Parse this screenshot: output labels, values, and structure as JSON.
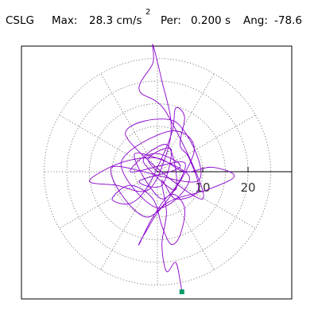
{
  "header": {
    "station": "CSLG",
    "max_label": "Max:",
    "max_value": "28.3 cm/s",
    "max_exponent": "2",
    "period_label": "Per:",
    "period_value": "0.200 s",
    "angle_label": "Ang:",
    "angle_value": "-78.6"
  },
  "colors": {
    "trace": "#8800cc",
    "end_marker": "#009966",
    "grid": "#666666",
    "axis": "#000000",
    "frame": "#000000"
  },
  "chart_data": {
    "type": "polar-orbit",
    "units": "cm/s2",
    "radial_rings": [
      5,
      10,
      15,
      20,
      25
    ],
    "tick_labels": [
      "10",
      "20"
    ],
    "spoke_step_deg": 30,
    "xlim": [
      -20,
      30
    ],
    "ylim": [
      -27,
      27
    ],
    "grid": true,
    "trace": {
      "name": "",
      "points": [
        [
          0,
          0
        ],
        [
          -2,
          3
        ],
        [
          3,
          5
        ],
        [
          1,
          -3
        ],
        [
          -4,
          -2
        ],
        [
          5,
          1
        ],
        [
          0,
          4
        ],
        [
          -3,
          2
        ],
        [
          4,
          -4
        ],
        [
          2,
          6
        ],
        [
          -6,
          0
        ],
        [
          6,
          2
        ],
        [
          1,
          -6
        ],
        [
          -5,
          4
        ],
        [
          7,
          -1
        ],
        [
          0,
          -8
        ],
        [
          -8,
          2
        ],
        [
          3,
          9
        ],
        [
          8,
          4
        ],
        [
          -2,
          -10
        ],
        [
          -10,
          1
        ],
        [
          9,
          -2
        ],
        [
          4,
          11
        ],
        [
          -7,
          8
        ],
        [
          10,
          -6
        ],
        [
          2,
          13
        ],
        [
          -4,
          18
        ],
        [
          -1,
          24
        ],
        [
          -1,
          28
        ],
        [
          1,
          20
        ],
        [
          3,
          11
        ],
        [
          2,
          4
        ],
        [
          -2,
          -4
        ],
        [
          -9,
          -3
        ],
        [
          -15,
          -2
        ],
        [
          -8,
          2
        ],
        [
          0,
          3
        ],
        [
          6,
          0
        ],
        [
          12,
          1
        ],
        [
          17,
          -1
        ],
        [
          11,
          -4
        ],
        [
          2,
          -7
        ],
        [
          -3,
          -14
        ],
        [
          -4,
          -16
        ],
        [
          -1,
          -10
        ],
        [
          3,
          -5
        ],
        [
          6,
          -8
        ],
        [
          5,
          -14
        ],
        [
          3,
          -16
        ],
        [
          1,
          -12
        ],
        [
          -1,
          -6
        ],
        [
          -6,
          -3
        ],
        [
          -10,
          -6
        ],
        [
          -6,
          -7
        ],
        [
          -2,
          -3
        ],
        [
          3,
          8
        ],
        [
          4,
          14
        ],
        [
          6,
          12
        ],
        [
          5,
          6
        ],
        [
          7,
          3
        ],
        [
          9,
          -4
        ],
        [
          4,
          -6
        ],
        [
          1,
          -2
        ],
        [
          2,
          -9
        ],
        [
          1,
          -16
        ],
        [
          2,
          -22
        ],
        [
          4,
          -20
        ],
        [
          5,
          -24
        ],
        [
          5.4,
          -26.5
        ]
      ]
    },
    "end_point": [
      5.4,
      -26.5
    ]
  }
}
